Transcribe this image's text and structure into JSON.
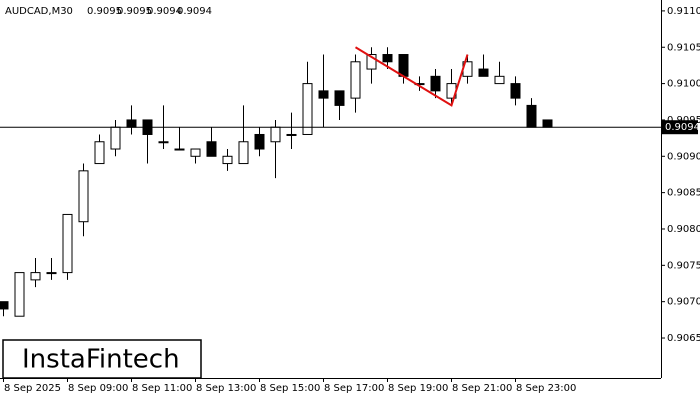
{
  "chart_data": {
    "type": "candlestick",
    "title": "AUDCAD,M30",
    "ohlc_header": [
      0.9095,
      0.9095,
      0.9094,
      0.9094
    ],
    "categories": [
      "8 Sep 2025",
      null,
      null,
      null,
      "8 Sep 09:00",
      null,
      null,
      null,
      "8 Sep 11:00",
      null,
      null,
      null,
      "8 Sep 13:00",
      null,
      null,
      null,
      "8 Sep 15:00",
      null,
      null,
      null,
      "8 Sep 17:00",
      null,
      null,
      null,
      "8 Sep 19:00",
      null,
      null,
      null,
      "8 Sep 21:00",
      null,
      null,
      null,
      "8 Sep 23:00",
      null,
      null
    ],
    "open": [
      0.907,
      0.9068,
      0.9073,
      0.9074,
      0.9074,
      0.9081,
      0.9089,
      0.9091,
      0.9095,
      0.9095,
      0.9092,
      0.9091,
      0.909,
      0.9092,
      0.9089,
      0.9089,
      0.9093,
      0.9092,
      0.9093,
      0.9093,
      0.9099,
      0.9099,
      0.9098,
      0.9102,
      0.9104,
      0.9104,
      0.91,
      0.9101,
      0.9098,
      0.9101,
      0.9102,
      0.91,
      0.91,
      0.9097,
      0.9095
    ],
    "high": [
      0.907,
      0.9074,
      0.9076,
      0.9076,
      0.9082,
      0.9089,
      0.9093,
      0.9095,
      0.9097,
      0.9095,
      0.9097,
      0.9094,
      0.9091,
      0.9094,
      0.9091,
      0.9097,
      0.9094,
      0.9095,
      0.9096,
      0.9103,
      0.9104,
      0.9099,
      0.9104,
      0.9105,
      0.9105,
      0.9104,
      0.9101,
      0.9102,
      0.9102,
      0.9104,
      0.9104,
      0.9103,
      0.9101,
      0.9098,
      0.9095
    ],
    "low": [
      0.9068,
      0.9068,
      0.9072,
      0.9073,
      0.9073,
      0.9079,
      0.9089,
      0.909,
      0.9093,
      0.9089,
      0.9091,
      0.9091,
      0.9089,
      0.909,
      0.9088,
      0.9089,
      0.909,
      0.9087,
      0.9091,
      0.9093,
      0.9094,
      0.9095,
      0.9096,
      0.91,
      0.9102,
      0.91,
      0.9099,
      0.9098,
      0.9097,
      0.91,
      0.9101,
      0.91,
      0.9097,
      0.9094,
      0.9094
    ],
    "close": [
      0.9069,
      0.9074,
      0.9074,
      0.9074,
      0.9082,
      0.9088,
      0.9092,
      0.9094,
      0.9094,
      0.9093,
      0.9092,
      0.9091,
      0.9091,
      0.909,
      0.909,
      0.9092,
      0.9091,
      0.9094,
      0.9093,
      0.91,
      0.9098,
      0.9097,
      0.9103,
      0.9104,
      0.9103,
      0.9101,
      0.91,
      0.9099,
      0.91,
      0.9103,
      0.9101,
      0.9101,
      0.9098,
      0.9094,
      0.9094
    ],
    "up_color": "#ffffff",
    "down_color": "#000000",
    "ylim": [
      0.90595,
      0.91115
    ],
    "yticks": [
      {
        "value": 0.911,
        "label": "0.9110"
      },
      0.9105,
      {
        "value": 0.91,
        "label": "0.9100"
      },
      0.9095,
      {
        "value": 0.909,
        "label": "0.9090"
      },
      0.9085,
      {
        "value": 0.908,
        "label": "0.9080"
      },
      0.9075,
      {
        "value": 0.907,
        "label": "0.9070"
      },
      0.9065
    ],
    "current_price": 0.9094,
    "pattern": {
      "color": "#e01010",
      "points": [
        [
          22,
          0.9105
        ],
        [
          28,
          0.9097
        ],
        [
          29,
          0.9104
        ]
      ]
    },
    "watermark": "InstaFintech"
  }
}
